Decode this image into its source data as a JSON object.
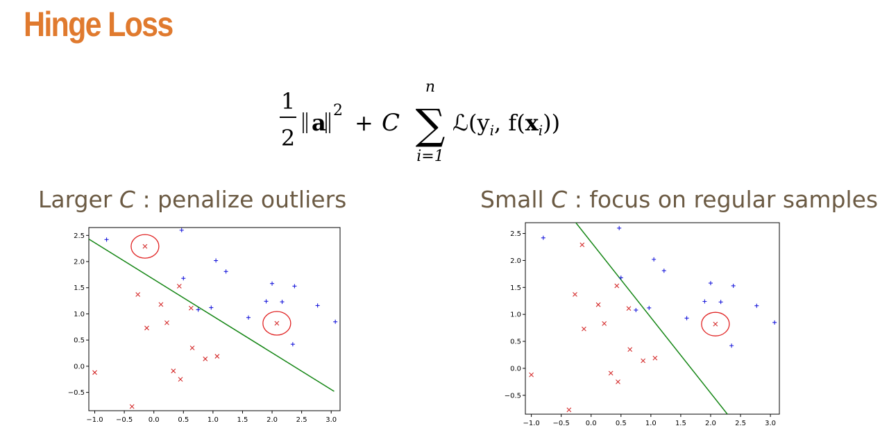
{
  "title": "Hinge Loss",
  "formula": {
    "frac_num": "1",
    "frac_den": "2",
    "norm_var": "a",
    "norm_exp": "2",
    "plus": "+",
    "c": "C",
    "sum_sym": "∑",
    "sum_upper": "n",
    "sum_lower": "i=1",
    "loss": "ℒ(y",
    "loss_sub": "i",
    "loss_mid": ", f(",
    "loss_x": "x",
    "loss_x_sub": "i",
    "loss_end": "))"
  },
  "left_panel": {
    "subtitle_pre": "Larger ",
    "subtitle_c": "C",
    "subtitle_post": " : penalize outliers"
  },
  "right_panel": {
    "subtitle_pre": "Small ",
    "subtitle_c": "C",
    "subtitle_post": " : focus on regular samples"
  },
  "chart_data": [
    {
      "type": "scatter",
      "xlim": [
        -1.1,
        3.15
      ],
      "ylim": [
        -0.85,
        2.65
      ],
      "xticks": [
        -1.0,
        -0.5,
        0.0,
        0.5,
        1.0,
        1.5,
        2.0,
        2.5,
        3.0
      ],
      "yticks": [
        -0.5,
        0.0,
        0.5,
        1.0,
        1.5,
        2.0,
        2.5
      ],
      "xtick_labels": [
        "−1.0",
        "−0.5",
        "0.0",
        "0.5",
        "1.0",
        "1.5",
        "2.0",
        "2.5",
        "3.0"
      ],
      "ytick_labels": [
        "−0.5",
        "0.0",
        "0.5",
        "1.0",
        "1.5",
        "2.0",
        "2.5"
      ],
      "series": [
        {
          "marker": "+",
          "color": "#1a1adb",
          "points": [
            [
              -0.8,
              2.42
            ],
            [
              0.47,
              2.6
            ],
            [
              1.05,
              2.02
            ],
            [
              1.22,
              1.81
            ],
            [
              0.5,
              1.68
            ],
            [
              2.0,
              1.58
            ],
            [
              2.38,
              1.53
            ],
            [
              0.97,
              1.12
            ],
            [
              0.75,
              1.08
            ],
            [
              1.9,
              1.24
            ],
            [
              2.17,
              1.23
            ],
            [
              2.77,
              1.16
            ],
            [
              1.6,
              0.93
            ],
            [
              3.07,
              0.85
            ],
            [
              2.35,
              0.42
            ]
          ]
        },
        {
          "marker": "x",
          "color": "#d42a2a",
          "points": [
            [
              -0.15,
              2.29
            ],
            [
              0.43,
              1.53
            ],
            [
              -0.27,
              1.37
            ],
            [
              0.12,
              1.18
            ],
            [
              0.63,
              1.11
            ],
            [
              0.22,
              0.83
            ],
            [
              -0.12,
              0.73
            ],
            [
              2.08,
              0.82
            ],
            [
              0.65,
              0.35
            ],
            [
              0.87,
              0.14
            ],
            [
              1.07,
              0.19
            ],
            [
              0.33,
              -0.09
            ],
            [
              0.45,
              -0.25
            ],
            [
              -1.0,
              -0.12
            ],
            [
              -0.37,
              -0.77
            ]
          ]
        }
      ],
      "decision_line": {
        "color": "#138513",
        "x": [
          -1.1,
          3.05
        ],
        "y": [
          2.43,
          -0.48
        ]
      },
      "highlight_circles": [
        [
          -0.15,
          2.29
        ],
        [
          2.08,
          0.82
        ]
      ]
    },
    {
      "type": "scatter",
      "xlim": [
        -1.1,
        3.15
      ],
      "ylim": [
        -0.85,
        2.7
      ],
      "xticks": [
        -1.0,
        -0.5,
        0.0,
        0.5,
        1.0,
        1.5,
        2.0,
        2.5,
        3.0
      ],
      "yticks": [
        -0.5,
        0.0,
        0.5,
        1.0,
        1.5,
        2.0,
        2.5
      ],
      "xtick_labels": [
        "−1.0",
        "−0.5",
        "0.0",
        "0.5",
        "1.0",
        "1.5",
        "2.0",
        "2.5",
        "3.0"
      ],
      "ytick_labels": [
        "−0.5",
        "0.0",
        "0.5",
        "1.0",
        "1.5",
        "2.0",
        "2.5"
      ],
      "series": [
        {
          "marker": "+",
          "color": "#1a1adb",
          "points": [
            [
              -0.8,
              2.42
            ],
            [
              0.47,
              2.6
            ],
            [
              1.05,
              2.02
            ],
            [
              1.22,
              1.81
            ],
            [
              0.5,
              1.68
            ],
            [
              2.0,
              1.58
            ],
            [
              2.38,
              1.53
            ],
            [
              0.97,
              1.12
            ],
            [
              0.75,
              1.08
            ],
            [
              1.9,
              1.24
            ],
            [
              2.17,
              1.23
            ],
            [
              2.77,
              1.16
            ],
            [
              1.6,
              0.93
            ],
            [
              3.07,
              0.85
            ],
            [
              2.35,
              0.42
            ]
          ]
        },
        {
          "marker": "x",
          "color": "#d42a2a",
          "points": [
            [
              -0.15,
              2.29
            ],
            [
              0.43,
              1.53
            ],
            [
              -0.27,
              1.37
            ],
            [
              0.12,
              1.18
            ],
            [
              0.63,
              1.11
            ],
            [
              0.22,
              0.83
            ],
            [
              -0.12,
              0.73
            ],
            [
              2.08,
              0.82
            ],
            [
              0.65,
              0.35
            ],
            [
              0.87,
              0.14
            ],
            [
              1.07,
              0.19
            ],
            [
              0.33,
              -0.09
            ],
            [
              0.45,
              -0.25
            ],
            [
              -1.0,
              -0.12
            ],
            [
              -0.37,
              -0.77
            ]
          ]
        }
      ],
      "decision_line": {
        "color": "#138513",
        "x": [
          -0.27,
          2.28
        ],
        "y": [
          2.72,
          -0.85
        ]
      },
      "highlight_circles": [
        [
          2.08,
          0.82
        ]
      ]
    }
  ]
}
